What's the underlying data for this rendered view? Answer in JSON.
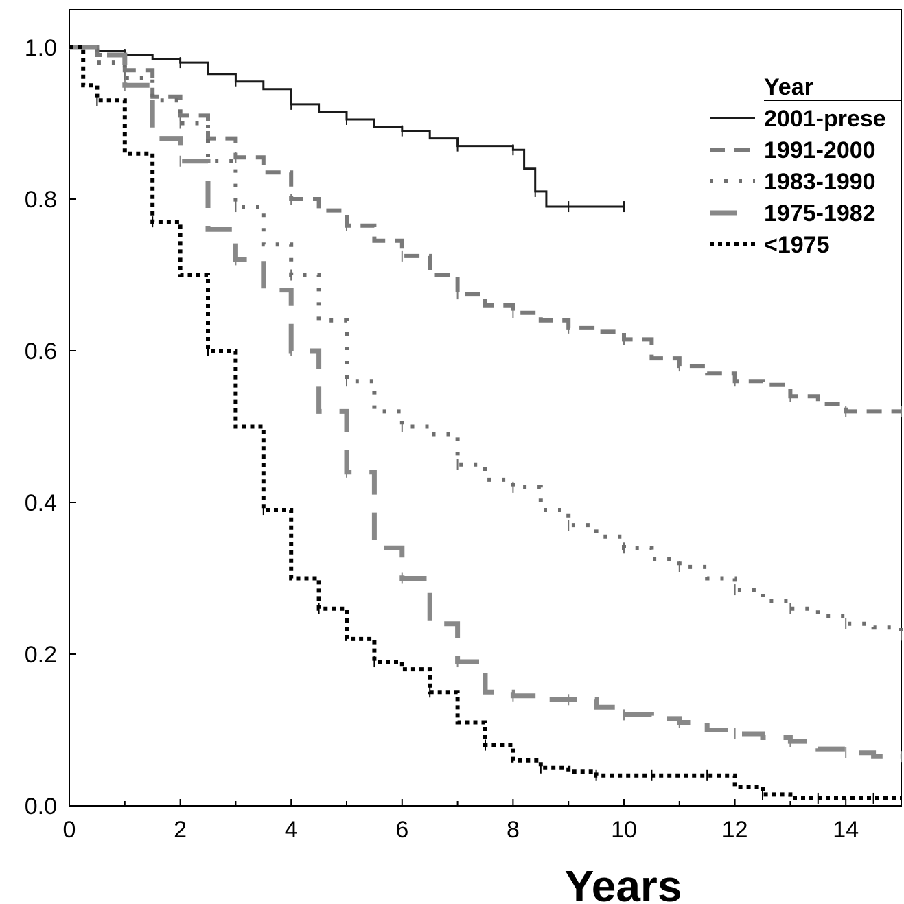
{
  "chart_data": {
    "type": "line",
    "title": "",
    "xlabel": "Years",
    "ylabel": "",
    "xlim": [
      0,
      15
    ],
    "ylim": [
      0,
      1.0
    ],
    "xticks": [
      "0",
      "2",
      "4",
      "6",
      "8",
      "10",
      "12",
      "14"
    ],
    "yticks": [
      "0.0",
      "0.2",
      "0.4",
      "0.6",
      "0.8",
      "1.0"
    ],
    "grid": false,
    "legend": {
      "title": "Year",
      "position": "top-right"
    },
    "series": [
      {
        "name": "2001-prese",
        "color": "#1a1a1a",
        "style": "solid",
        "x": [
          0,
          0.5,
          1.0,
          1.5,
          2.0,
          2.5,
          3.0,
          3.5,
          4.0,
          4.5,
          5.0,
          5.5,
          6.0,
          6.5,
          7.0,
          7.5,
          8.0,
          8.2,
          8.4,
          8.6,
          9.0,
          9.5,
          10.0
        ],
        "y": [
          1.0,
          0.995,
          0.99,
          0.985,
          0.98,
          0.965,
          0.955,
          0.945,
          0.925,
          0.915,
          0.905,
          0.895,
          0.89,
          0.88,
          0.87,
          0.87,
          0.865,
          0.84,
          0.81,
          0.79,
          0.79,
          0.79,
          0.79
        ]
      },
      {
        "name": "1991-2000",
        "color": "#7a7a7a",
        "style": "dashed",
        "x": [
          0,
          0.5,
          1.0,
          1.5,
          2.0,
          2.5,
          3.0,
          3.5,
          4.0,
          4.5,
          5.0,
          5.5,
          6.0,
          6.5,
          7.0,
          7.5,
          8.0,
          8.5,
          9.0,
          9.5,
          10.0,
          10.5,
          11.0,
          11.5,
          12.0,
          12.5,
          13.0,
          13.5,
          14.0,
          14.5,
          15.0
        ],
        "y": [
          1.0,
          0.99,
          0.97,
          0.935,
          0.91,
          0.88,
          0.855,
          0.835,
          0.8,
          0.785,
          0.765,
          0.745,
          0.725,
          0.7,
          0.675,
          0.66,
          0.65,
          0.64,
          0.63,
          0.625,
          0.615,
          0.59,
          0.58,
          0.57,
          0.56,
          0.555,
          0.54,
          0.53,
          0.52,
          0.52,
          0.52
        ]
      },
      {
        "name": "1983-1990",
        "color": "#6e6e6e",
        "style": "dotted",
        "x": [
          0,
          0.5,
          1.0,
          1.5,
          2.0,
          2.5,
          3.0,
          3.5,
          4.0,
          4.5,
          5.0,
          5.5,
          6.0,
          6.5,
          7.0,
          7.5,
          8.0,
          8.5,
          9.0,
          9.5,
          10.0,
          10.5,
          11.0,
          11.5,
          12.0,
          12.5,
          13.0,
          13.5,
          14.0,
          14.5,
          15.0
        ],
        "y": [
          1.0,
          0.98,
          0.96,
          0.93,
          0.9,
          0.85,
          0.79,
          0.74,
          0.7,
          0.64,
          0.56,
          0.52,
          0.5,
          0.49,
          0.45,
          0.43,
          0.42,
          0.39,
          0.37,
          0.355,
          0.34,
          0.325,
          0.315,
          0.3,
          0.285,
          0.27,
          0.26,
          0.25,
          0.24,
          0.235,
          0.225
        ]
      },
      {
        "name": "1975-1982",
        "color": "#888888",
        "style": "long-dash",
        "x": [
          0,
          0.5,
          1.0,
          1.5,
          2.0,
          2.5,
          3.0,
          3.5,
          4.0,
          4.5,
          5.0,
          5.5,
          6.0,
          6.5,
          7.0,
          7.5,
          8.0,
          8.5,
          9.0,
          9.5,
          10.0,
          10.5,
          11.0,
          11.5,
          12.0,
          12.5,
          13.0,
          13.5,
          14.0,
          14.5,
          15.0
        ],
        "y": [
          1.0,
          0.99,
          0.95,
          0.88,
          0.85,
          0.76,
          0.72,
          0.68,
          0.6,
          0.52,
          0.44,
          0.34,
          0.3,
          0.24,
          0.19,
          0.15,
          0.145,
          0.14,
          0.14,
          0.13,
          0.12,
          0.115,
          0.11,
          0.1,
          0.095,
          0.09,
          0.085,
          0.075,
          0.07,
          0.065,
          0.065
        ]
      },
      {
        "name": "<1975",
        "color": "#000000",
        "style": "square-dot",
        "x": [
          0,
          0.25,
          0.5,
          1.0,
          1.5,
          2.0,
          2.5,
          3.0,
          3.5,
          4.0,
          4.5,
          5.0,
          5.5,
          6.0,
          6.5,
          7.0,
          7.5,
          8.0,
          8.5,
          9.0,
          9.5,
          10.0,
          10.5,
          11.0,
          11.5,
          12.0,
          12.5,
          13.0,
          13.5,
          14.0,
          14.5,
          15.0
        ],
        "y": [
          1.0,
          0.95,
          0.93,
          0.86,
          0.77,
          0.7,
          0.6,
          0.5,
          0.39,
          0.3,
          0.26,
          0.22,
          0.19,
          0.18,
          0.15,
          0.11,
          0.08,
          0.06,
          0.05,
          0.045,
          0.04,
          0.04,
          0.04,
          0.04,
          0.04,
          0.025,
          0.015,
          0.01,
          0.01,
          0.01,
          0.01,
          0.01
        ]
      }
    ]
  }
}
